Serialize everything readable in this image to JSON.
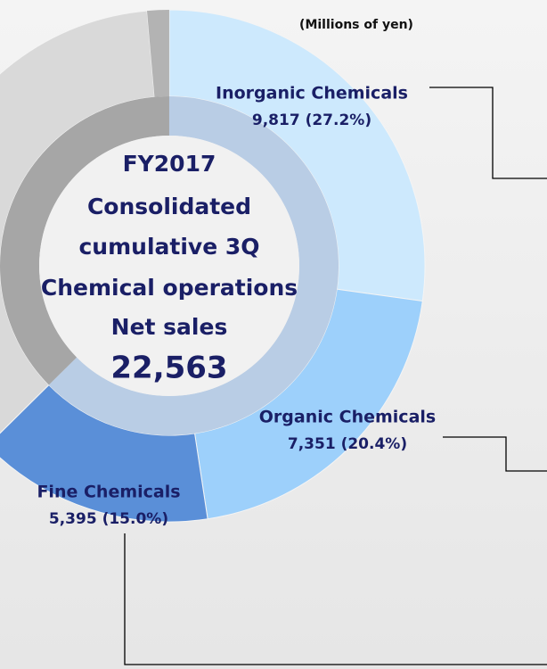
{
  "chart_data": {
    "type": "donut",
    "title": "(Millions of yen)",
    "categories": [
      "Inorganic Chemicals",
      "Organic Chemicals",
      "Fine Chemicals"
    ],
    "values": [
      27.2,
      20.4,
      15.0
    ],
    "value_labels": [
      "9,817 (27.2%)",
      "7,351 (20.4%)",
      "5,395 (15.0%)"
    ],
    "colors": [
      "#cde9fd",
      "#9dd0fb",
      "#5a8fd8"
    ],
    "center_lines": [
      "FY2017",
      "Consolidated",
      "cumulative 3Q",
      "Chemical operations",
      "Net sales"
    ],
    "center_value": "22,563"
  }
}
